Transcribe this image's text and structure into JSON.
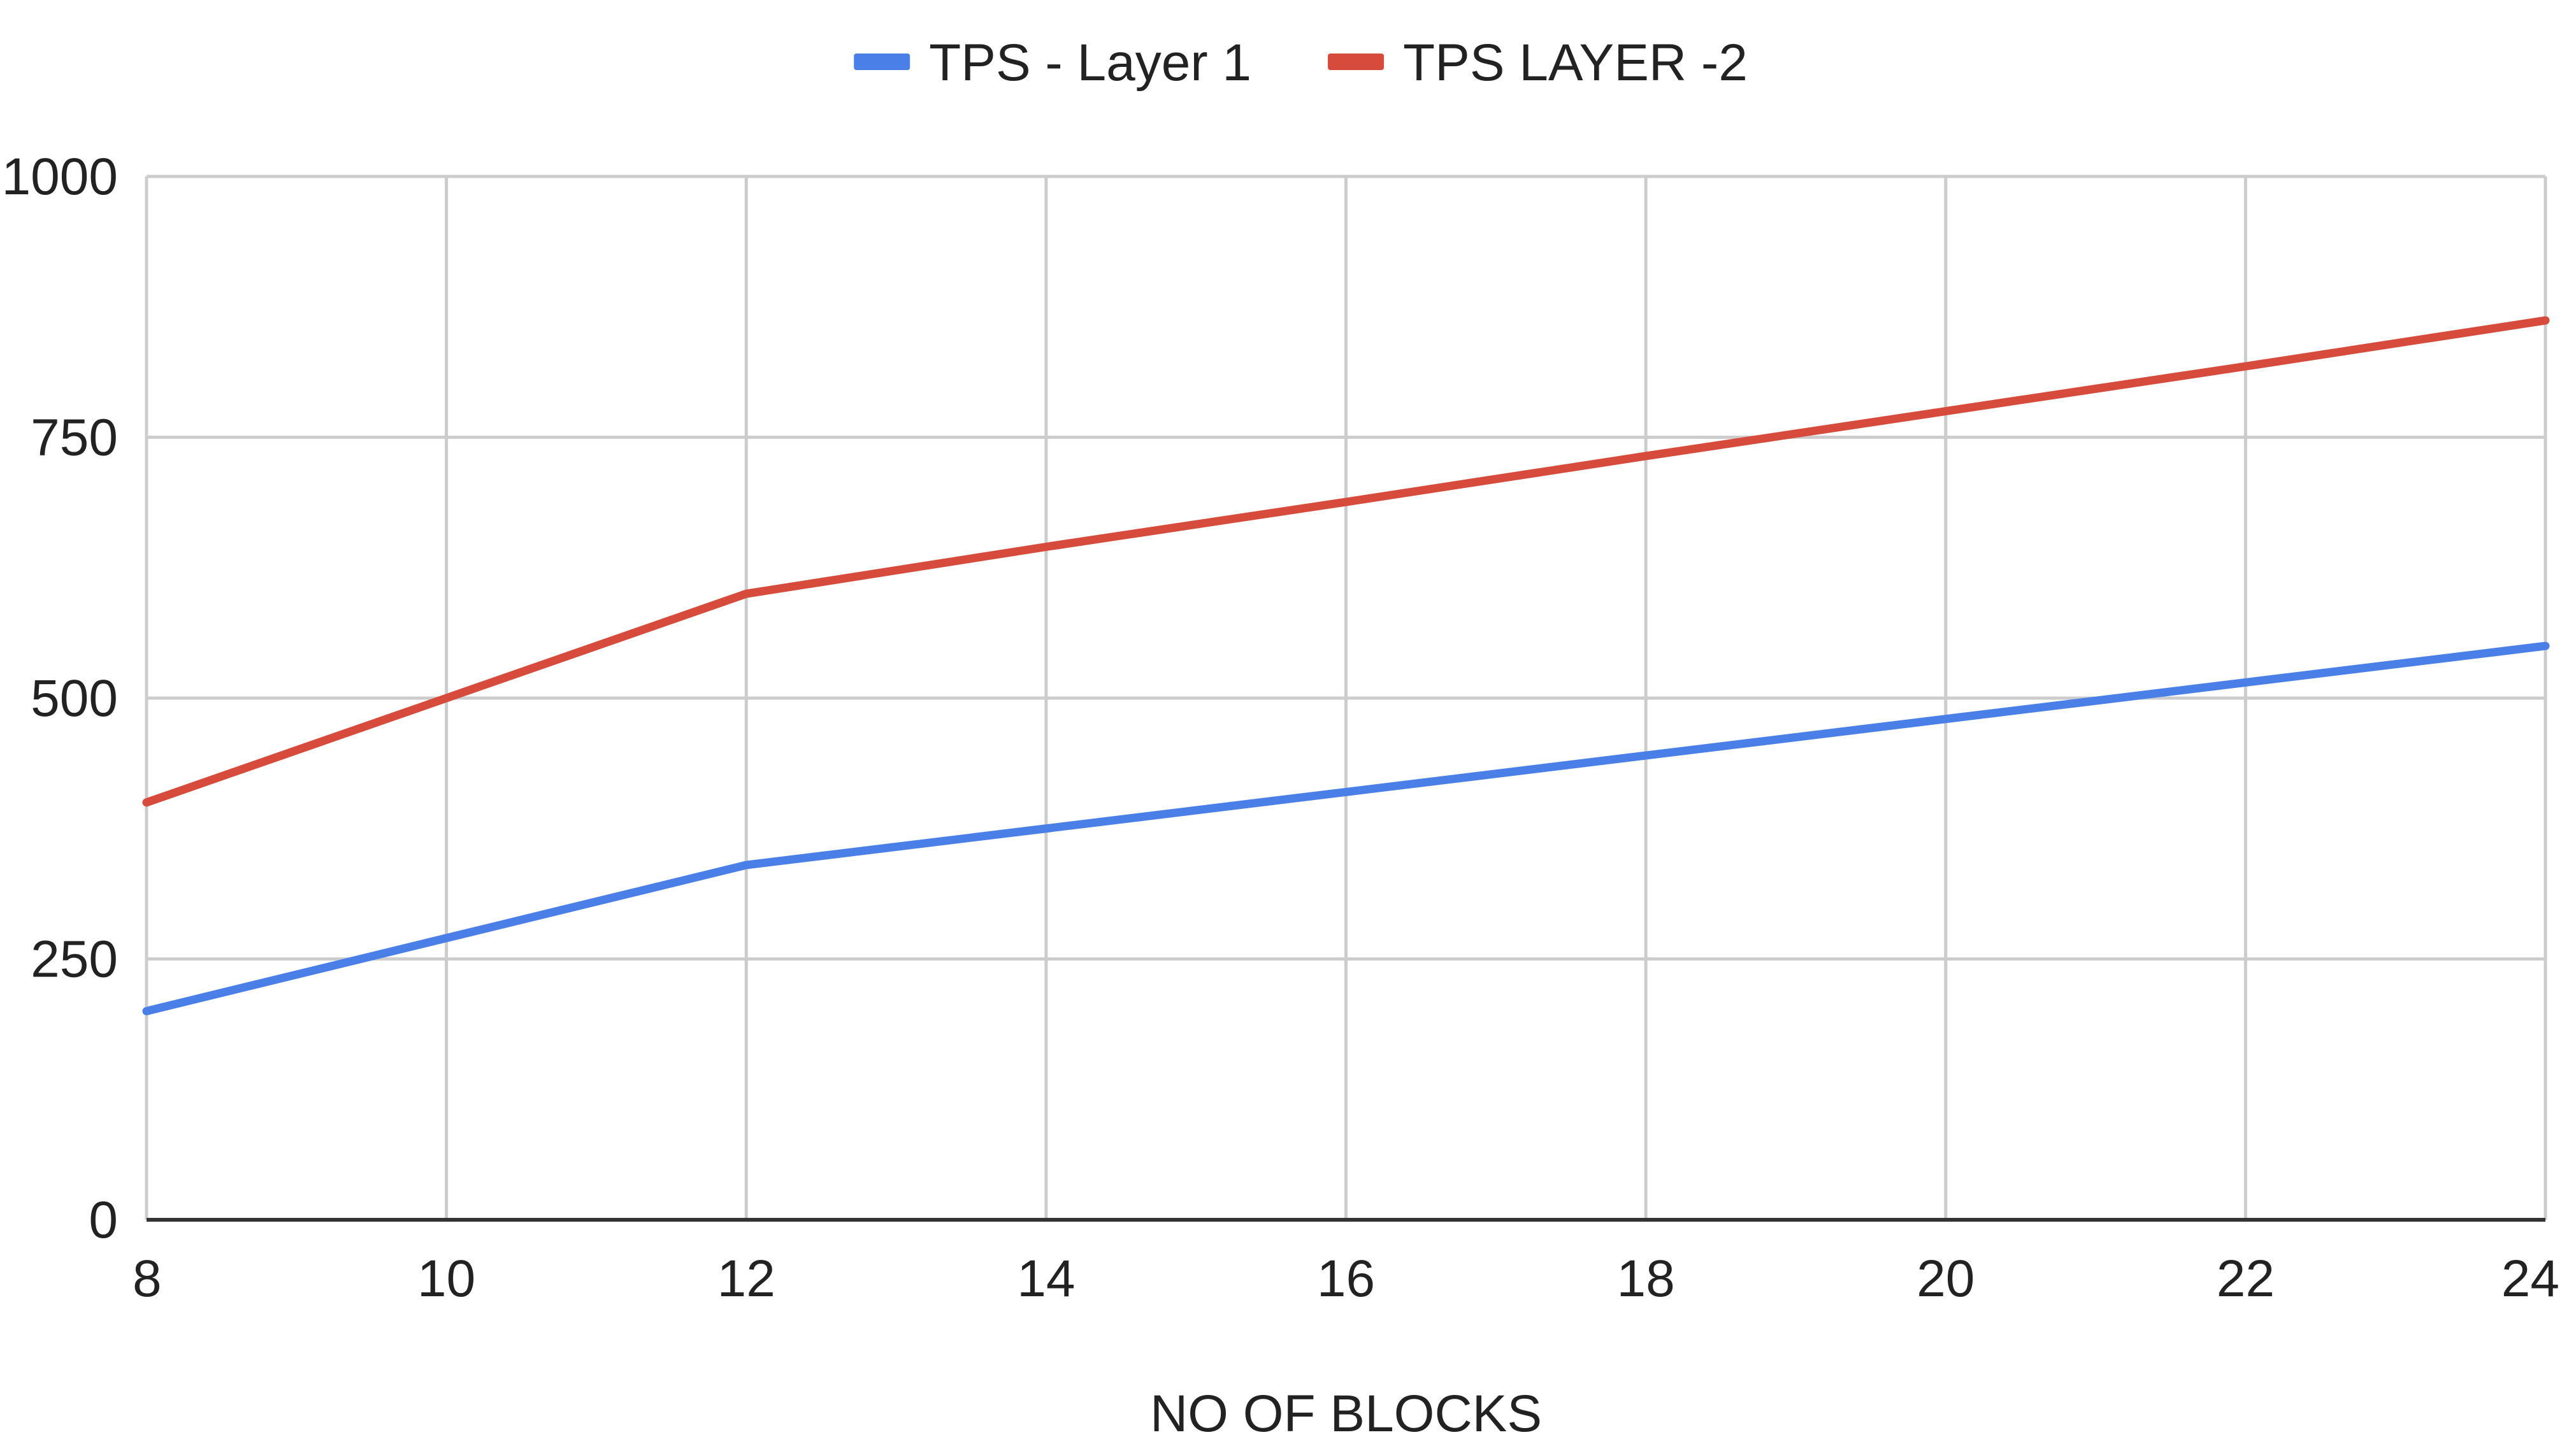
{
  "chart_data": {
    "type": "line",
    "title": "",
    "xlabel": "NO OF BLOCKS",
    "ylabel": "",
    "x": [
      8,
      10,
      12,
      14,
      16,
      18,
      20,
      22,
      24
    ],
    "xlim": [
      8,
      24
    ],
    "ylim": [
      0,
      1000
    ],
    "xticks": [
      "8",
      "10",
      "12",
      "14",
      "16",
      "18",
      "20",
      "22",
      "24"
    ],
    "yticks": [
      "0",
      "250",
      "500",
      "750",
      "1000"
    ],
    "grid": true,
    "legend_position": "top-center",
    "series": [
      {
        "name": "TPS - Layer 1",
        "color": "#4a7fe8",
        "values": [
          200,
          270,
          340,
          375,
          410,
          445,
          480,
          515,
          550
        ]
      },
      {
        "name": "TPS LAYER -2",
        "color": "#d64b3c",
        "values": [
          400,
          500,
          600,
          645,
          688,
          732,
          775,
          818,
          862
        ]
      }
    ]
  }
}
